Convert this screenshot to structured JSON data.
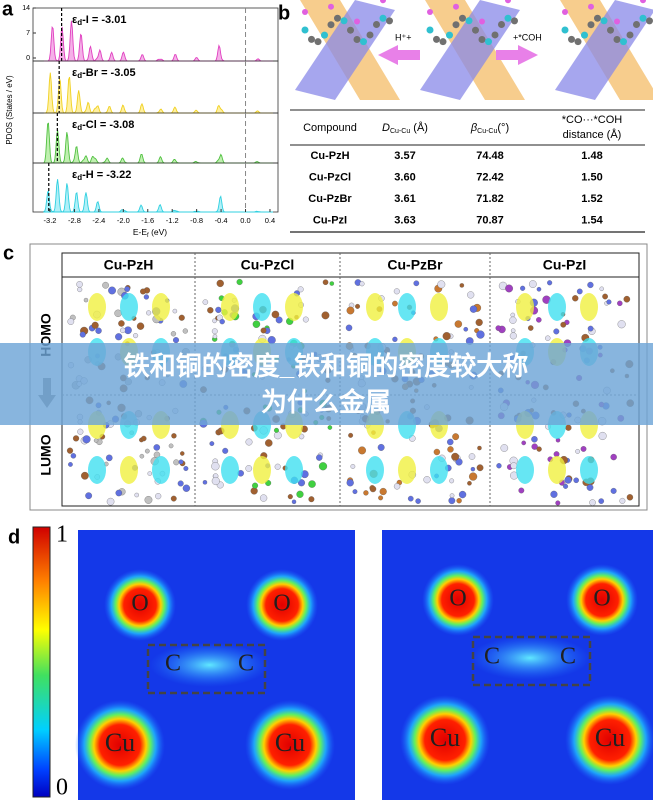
{
  "panel_a": {
    "label": "a",
    "y_axis_label": "PDOS (States / eV)",
    "x_axis_label": {
      "main": "E-E",
      "sub": "f",
      "unit": " (eV)"
    },
    "yticks": [
      14,
      7,
      0
    ],
    "xticks": [
      -3.2,
      -2.8,
      -2.4,
      {
        "value": -2,
        "label": "-2.0"
      },
      -1.6,
      -1.2,
      -0.8,
      -0.4,
      {
        "value": 0,
        "label": "0.0"
      },
      0.4
    ],
    "annotations": [
      {
        "symbol": "ε",
        "sub": "d",
        "text": "-I = -3.01",
        "value": -3.01
      },
      {
        "symbol": "ε",
        "sub": "d",
        "text": "-Br = -3.05",
        "value": -3.05
      },
      {
        "symbol": "ε",
        "sub": "d",
        "text": "-Cl = -3.08",
        "value": -3.08
      },
      {
        "symbol": "ε",
        "sub": "d",
        "text": "-H = -3.22",
        "value": -3.22
      }
    ],
    "fermi_level": 0
  },
  "panel_b": {
    "label": "b",
    "reactions": [
      "H⁺+",
      "+*COH"
    ],
    "table": {
      "header": [
        {
          "text": "Compound"
        },
        {
          "sym": "D",
          "sub": "Cu-Cu",
          "unit": " (Å)"
        },
        {
          "sym": "β",
          "sub": "Cu-Cu",
          "unit": "(°)"
        },
        {
          "line1": "*CO···*COH",
          "line2": "distance (Å)"
        }
      ],
      "rows": [
        [
          "Cu-PzH",
          "3.57",
          "74.48",
          "1.48"
        ],
        [
          "Cu-PzCl",
          "3.60",
          "72.42",
          "1.50"
        ],
        [
          "Cu-PzBr",
          "3.61",
          "71.82",
          "1.52"
        ],
        [
          "Cu-PzI",
          "3.63",
          "70.87",
          "1.54"
        ]
      ]
    }
  },
  "panel_c": {
    "label": "c",
    "columns": [
      "Cu-PzH",
      "Cu-PzCl",
      "Cu-PzBr",
      "Cu-PzI"
    ],
    "rows": [
      "HOMO",
      "LUMO"
    ]
  },
  "banner": {
    "lines": [
      "铁和铜的密度_铁和铜的密度较大称",
      "为什么金属"
    ]
  },
  "panel_d": {
    "label": "d",
    "colorbar": {
      "max": "1",
      "min": "0"
    },
    "maps": [
      {
        "atoms": [
          "O",
          "O",
          "C",
          "C",
          "Cu",
          "Cu"
        ]
      },
      {
        "atoms": [
          "O",
          "O",
          "C",
          "C",
          "Cu",
          "Cu"
        ]
      }
    ]
  }
}
